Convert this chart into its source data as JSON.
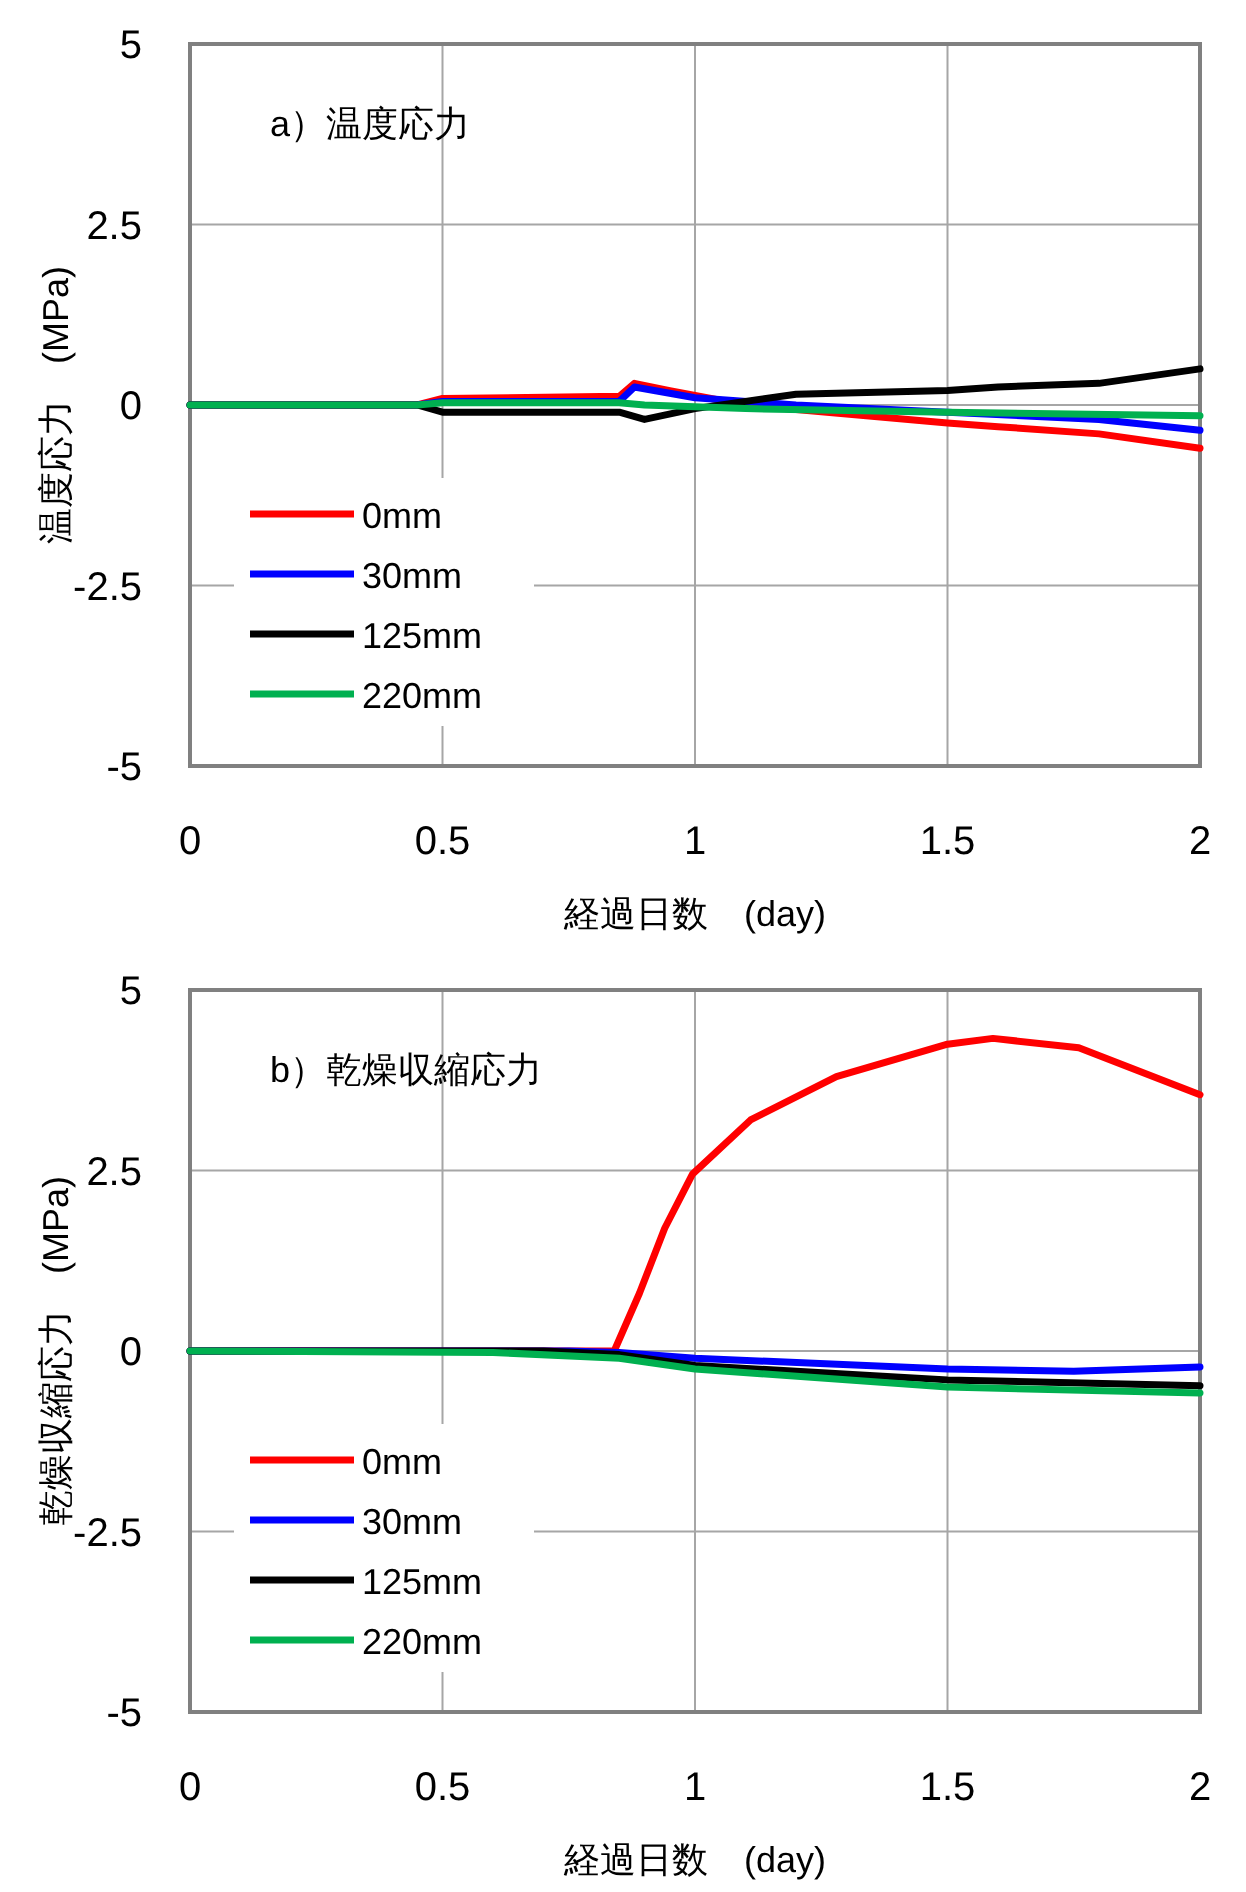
{
  "chart_data": [
    {
      "type": "line",
      "title": "a）温度応力",
      "xlabel": "経過日数　(day)",
      "ylabel": "温度応力　(MPa)",
      "xlim": [
        0,
        2
      ],
      "ylim": [
        -5,
        5
      ],
      "xticks": [
        0,
        0.5,
        1,
        1.5,
        2
      ],
      "yticks": [
        -5,
        -2.5,
        0,
        2.5,
        5
      ],
      "grid": true,
      "legend": "bottom left",
      "line_style": "solid",
      "marker": "none",
      "series": [
        {
          "name": "0mm",
          "color": "#ff0000",
          "x": [
            0,
            0.45,
            0.5,
            0.85,
            0.88,
            0.95,
            1.1,
            1.5,
            1.6,
            1.8,
            2
          ],
          "values": [
            0,
            0,
            0.09,
            0.12,
            0.3,
            0.2,
            0,
            -0.25,
            -0.3,
            -0.4,
            -0.6
          ]
        },
        {
          "name": "30mm",
          "color": "#0000ff",
          "x": [
            0,
            0.45,
            0.5,
            0.85,
            0.88,
            1,
            1.2,
            1.5,
            1.8,
            2
          ],
          "values": [
            0,
            0,
            0.05,
            0.05,
            0.25,
            0.1,
            0,
            -0.1,
            -0.2,
            -0.35
          ]
        },
        {
          "name": "125mm",
          "color": "#000000",
          "x": [
            0,
            0.45,
            0.5,
            0.85,
            0.9,
            1,
            1.1,
            1.2,
            1.5,
            1.6,
            1.8,
            2
          ],
          "values": [
            0,
            0,
            -0.1,
            -0.1,
            -0.2,
            -0.05,
            0.05,
            0.15,
            0.2,
            0.25,
            0.3,
            0.5
          ]
        },
        {
          "name": "220mm",
          "color": "#00b050",
          "x": [
            0,
            0.45,
            0.5,
            0.85,
            0.9,
            1.1,
            1.5,
            2
          ],
          "values": [
            0,
            0,
            0.03,
            0.03,
            0,
            -0.05,
            -0.1,
            -0.15
          ]
        }
      ]
    },
    {
      "type": "line",
      "title": "b）乾燥収縮応力",
      "xlabel": "経過日数　(day)",
      "ylabel": "乾燥収縮応力　(MPa)",
      "xlim": [
        0,
        2
      ],
      "ylim": [
        -5,
        5
      ],
      "xticks": [
        0,
        0.5,
        1,
        1.5,
        2
      ],
      "yticks": [
        -5,
        -2.5,
        0,
        2.5,
        5
      ],
      "grid": true,
      "legend": "bottom left",
      "line_style": "solid",
      "marker": "none",
      "series": [
        {
          "name": "0mm",
          "color": "#ff0000",
          "x": [
            0,
            0.8,
            0.84,
            0.89,
            0.94,
            0.995,
            1.11,
            1.28,
            1.5,
            1.59,
            1.76,
            2
          ],
          "values": [
            0,
            0,
            0,
            0.8,
            1.7,
            2.45,
            3.2,
            3.8,
            4.25,
            4.33,
            4.2,
            3.55
          ]
        },
        {
          "name": "30mm",
          "color": "#0000ff",
          "x": [
            0,
            0.75,
            0.85,
            1,
            1.5,
            1.75,
            2
          ],
          "values": [
            0,
            0,
            -0.02,
            -0.1,
            -0.25,
            -0.28,
            -0.22
          ]
        },
        {
          "name": "125mm",
          "color": "#000000",
          "x": [
            0,
            0.7,
            0.85,
            1,
            1.5,
            2
          ],
          "values": [
            0,
            0,
            -0.05,
            -0.2,
            -0.4,
            -0.48
          ]
        },
        {
          "name": "220mm",
          "color": "#00b050",
          "x": [
            0,
            0.6,
            0.85,
            1,
            1.5,
            2
          ],
          "values": [
            0,
            -0.02,
            -0.1,
            -0.25,
            -0.5,
            -0.58
          ]
        }
      ]
    }
  ]
}
